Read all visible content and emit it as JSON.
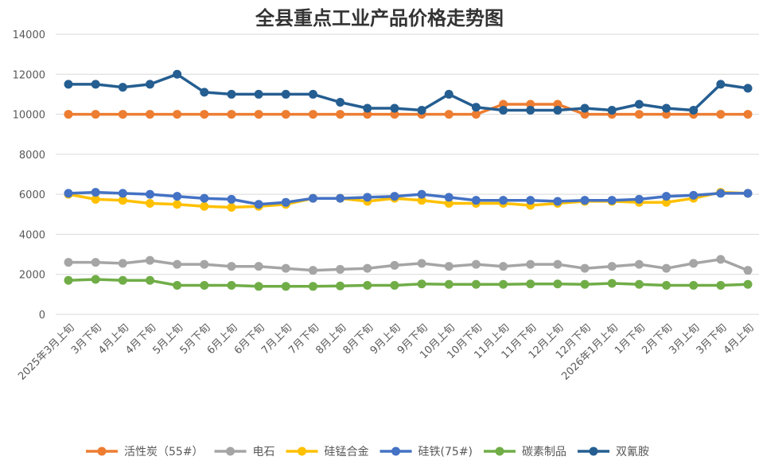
{
  "chart_data": {
    "type": "line",
    "title": "全县重点工业产品价格走势图",
    "xlabel": "",
    "ylabel": "",
    "ylim": [
      0,
      14000
    ],
    "yticks": [
      0,
      2000,
      4000,
      6000,
      8000,
      10000,
      12000,
      14000
    ],
    "grid": true,
    "legend_position": "bottom",
    "categories": [
      "2025年3月上旬",
      "3月下旬",
      "4月上旬",
      "4月下旬",
      "5月上旬",
      "5月下旬",
      "6月上旬",
      "6月下旬",
      "7月上旬",
      "7月下旬",
      "8月上旬",
      "8月下旬",
      "9月上旬",
      "9月下旬",
      "10月上旬",
      "10月下旬",
      "11月上旬",
      "11月下旬",
      "12月上旬",
      "12月下旬",
      "2026年1月上旬",
      "1月下旬",
      "2月下旬",
      "3月上旬",
      "3月下旬",
      "4月上旬"
    ],
    "series": [
      {
        "name": "活性炭（55#）",
        "color": "#ED7D31",
        "values": [
          10000,
          10000,
          10000,
          10000,
          10000,
          10000,
          10000,
          10000,
          10000,
          10000,
          10000,
          10000,
          10000,
          10000,
          10000,
          10000,
          10500,
          10500,
          10500,
          10000,
          10000,
          10000,
          10000,
          10000,
          10000,
          10000
        ]
      },
      {
        "name": "电石",
        "color": "#A5A5A5",
        "values": [
          2600,
          2600,
          2550,
          2700,
          2500,
          2500,
          2400,
          2400,
          2300,
          2200,
          2250,
          2300,
          2450,
          2550,
          2400,
          2500,
          2400,
          2500,
          2500,
          2300,
          2400,
          2500,
          2300,
          2550,
          2750,
          2200
        ]
      },
      {
        "name": "硅锰合金",
        "color": "#FFC000",
        "values": [
          6000,
          5750,
          5700,
          5550,
          5500,
          5400,
          5350,
          5400,
          5500,
          5800,
          5800,
          5650,
          5800,
          5700,
          5550,
          5550,
          5550,
          5450,
          5550,
          5650,
          5650,
          5600,
          5600,
          5800,
          6100,
          6050
        ]
      },
      {
        "name": "硅铁(75#)",
        "color": "#4472C4",
        "values": [
          6050,
          6100,
          6050,
          6000,
          5900,
          5800,
          5750,
          5500,
          5600,
          5800,
          5800,
          5850,
          5900,
          6000,
          5850,
          5700,
          5700,
          5700,
          5650,
          5700,
          5700,
          5750,
          5900,
          5950,
          6050,
          6050
        ]
      },
      {
        "name": "碳素制品",
        "color": "#70AD47",
        "values": [
          1700,
          1750,
          1700,
          1700,
          1450,
          1450,
          1450,
          1400,
          1400,
          1400,
          1420,
          1450,
          1450,
          1520,
          1500,
          1500,
          1500,
          1520,
          1520,
          1500,
          1550,
          1500,
          1450,
          1450,
          1450,
          1500
        ]
      },
      {
        "name": "双氰胺",
        "color": "#255E91",
        "values": [
          11500,
          11500,
          11350,
          11500,
          12000,
          11100,
          11000,
          11000,
          11000,
          11000,
          10600,
          10300,
          10300,
          10200,
          11000,
          10350,
          10200,
          10200,
          10200,
          10300,
          10200,
          10500,
          10300,
          10200,
          11500,
          11300
        ]
      }
    ]
  }
}
